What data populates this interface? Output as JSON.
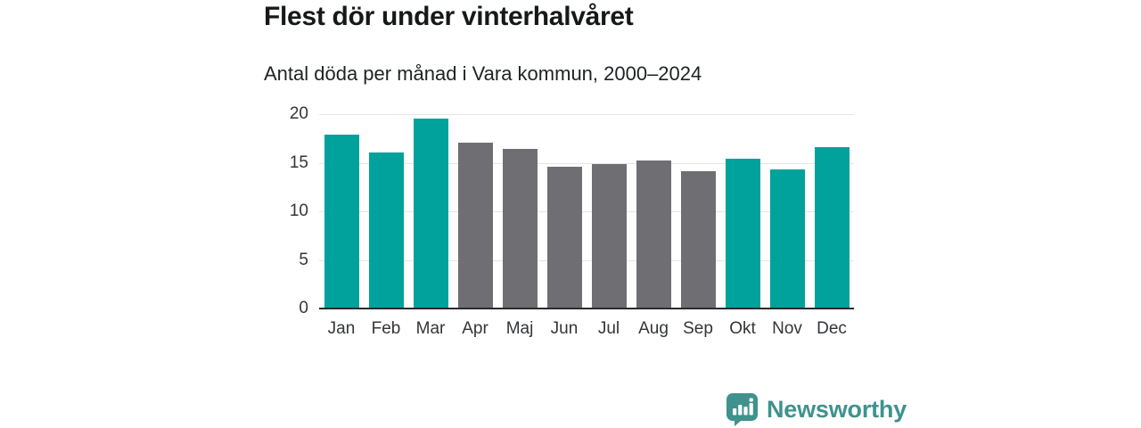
{
  "title": "Flest dör under vinterhalvåret",
  "subtitle": "Antal döda per månad i Vara kommun, 2000–2024",
  "chart_data": {
    "type": "bar",
    "title": "Flest dör under vinterhalvåret",
    "subtitle": "Antal döda per månad i Vara kommun, 2000–2024",
    "categories": [
      "Jan",
      "Feb",
      "Mar",
      "Apr",
      "Maj",
      "Jun",
      "Jul",
      "Aug",
      "Sep",
      "Okt",
      "Nov",
      "Dec"
    ],
    "values": [
      17.9,
      16.1,
      19.5,
      17.1,
      16.4,
      14.6,
      14.9,
      15.2,
      14.1,
      15.4,
      14.3,
      16.6
    ],
    "bar_colors": [
      "teal",
      "teal",
      "teal",
      "gray",
      "gray",
      "gray",
      "gray",
      "gray",
      "gray",
      "teal",
      "teal",
      "teal"
    ],
    "palette": {
      "teal": "#00a29b",
      "gray": "#6f6e73"
    },
    "xlabel": "",
    "ylabel": "",
    "ylim": [
      0,
      20
    ],
    "yticks": [
      0,
      5,
      10,
      15,
      20
    ],
    "grid": true,
    "legend": false,
    "gridline_color": "#e5e5e5",
    "axis_color": "#2a2b2d"
  },
  "footer": {
    "brand": "Newsworthy",
    "brand_color": "#3f928e",
    "logo_icon": "bar-chart-speech-bubble-icon"
  }
}
